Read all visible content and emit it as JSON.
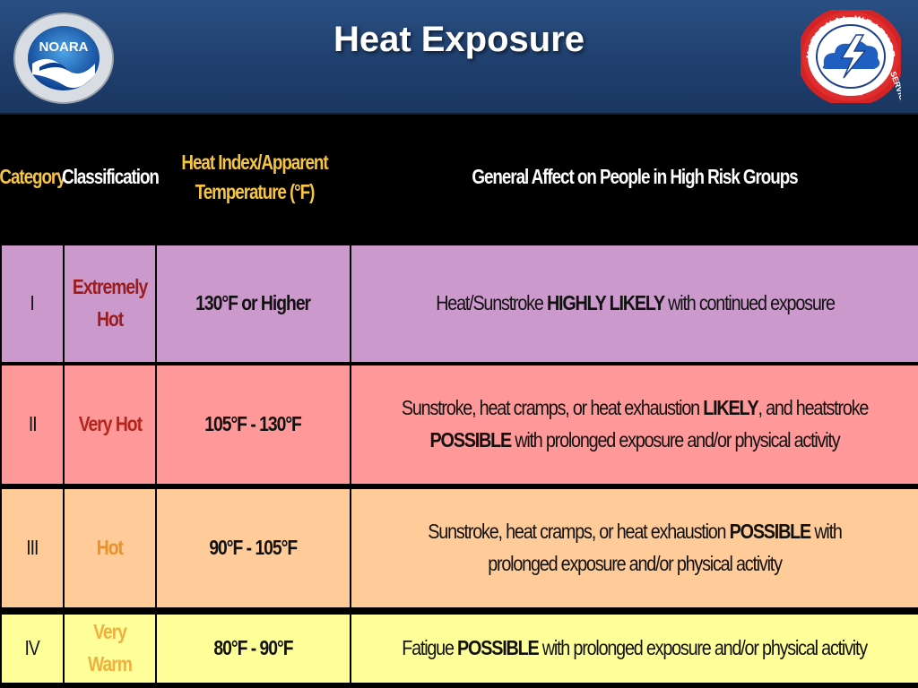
{
  "title": "Heat Exposure",
  "logos": {
    "noaa": {
      "text": "NOARA"
    },
    "nws": {
      "top_text": "NATIONAL WEATHER",
      "right_text": "SERVICE"
    }
  },
  "table": {
    "headers": {
      "category": "Category",
      "classification": "Classification",
      "heat_index_line1": "Heat Index/Apparent",
      "heat_index_line2": "Temperature (°F)",
      "effect": "General Affect on People in High Risk Groups"
    },
    "rows": [
      {
        "category": "I",
        "classification_line1": "Extremely",
        "classification_line2": "Hot",
        "temperature": "130°F or Higher",
        "effect": [
          {
            "text": "Heat/Sunstroke ",
            "strong": false
          },
          {
            "text": "HIGHLY LIKELY",
            "strong": true
          },
          {
            "text": " with continued exposure",
            "strong": false
          }
        ],
        "bg": "#cc99cc",
        "class_color": "#9b1c1c"
      },
      {
        "category": "II",
        "classification_line1": "Very Hot",
        "classification_line2": "",
        "temperature": "105°F - 130°F",
        "effect": [
          {
            "text": "Sunstroke, heat cramps, or heat exhaustion ",
            "strong": false
          },
          {
            "text": "LIKELY",
            "strong": true
          },
          {
            "text": ", and heatstroke ",
            "strong": false
          },
          {
            "text": "POSSIBLE",
            "strong": true
          },
          {
            "text": " with prolonged exposure and/or physical activity",
            "strong": false
          }
        ],
        "bg": "#ff9999",
        "class_color": "#b3261e"
      },
      {
        "category": "III",
        "classification_line1": "Hot",
        "classification_line2": "",
        "temperature": "90°F - 105°F",
        "effect": [
          {
            "text": "Sunstroke, heat cramps, or heat exhaustion ",
            "strong": false
          },
          {
            "text": "POSSIBLE",
            "strong": true
          },
          {
            "text": " with prolonged exposure and/or physical activity",
            "strong": false
          }
        ],
        "bg": "#ffcc99",
        "class_color": "#e8922a"
      },
      {
        "category": "IV",
        "classification_line1": "Very Warm",
        "classification_line2": "",
        "temperature": "80°F - 90°F",
        "effect": [
          {
            "text": "Fatigue ",
            "strong": false
          },
          {
            "text": "POSSIBLE",
            "strong": true
          },
          {
            "text": " with prolonged exposure and/or physical activity",
            "strong": false
          }
        ],
        "bg": "#ffff99",
        "class_color": "#f0b040"
      }
    ]
  }
}
